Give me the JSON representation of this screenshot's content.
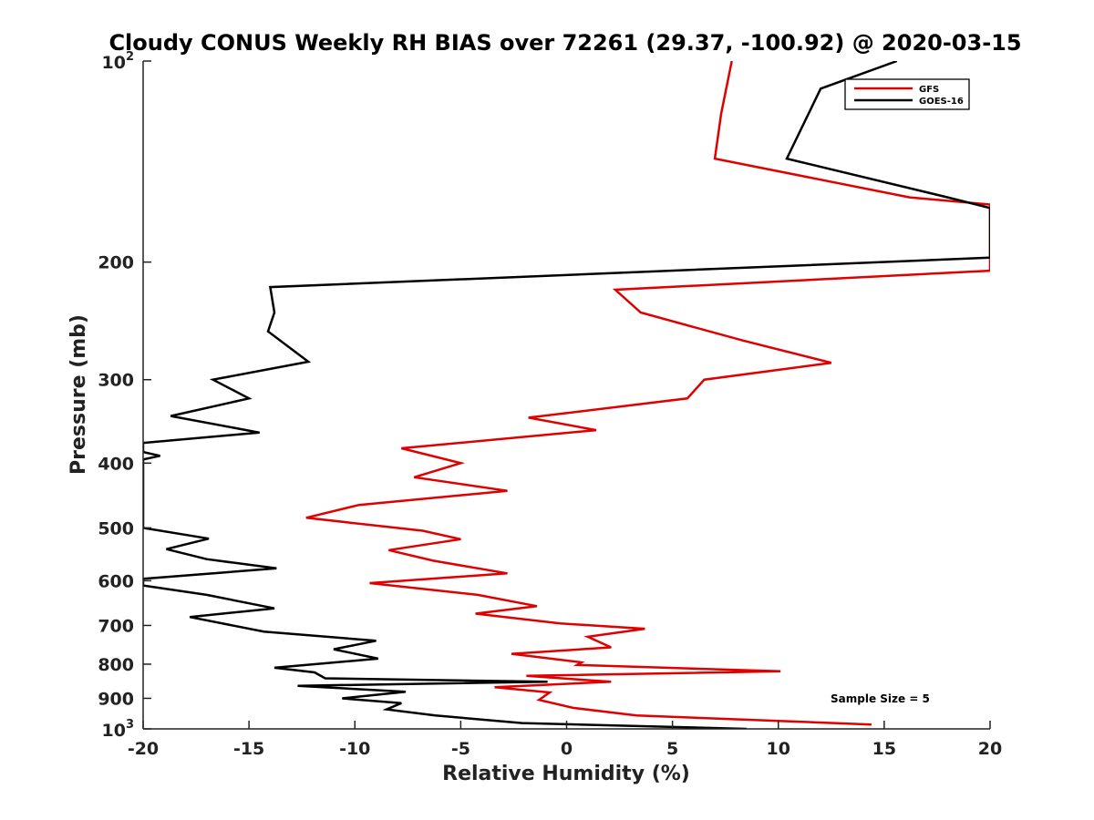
{
  "chart_data": {
    "type": "line",
    "title": "Cloudy CONUS Weekly RH BIAS over 72261 (29.37, -100.92) @ 2020-03-15",
    "xlabel": "Relative Humidity (%)",
    "ylabel": "Pressure (mb)",
    "xlim": [
      -20,
      20
    ],
    "ylim": [
      100,
      1000
    ],
    "y_scale": "log",
    "y_reversed": true,
    "grid": false,
    "legend_position": "top-right",
    "x_ticks": [
      "-20",
      "-15",
      "-10",
      "-5",
      "0",
      "5",
      "10",
      "15",
      "20"
    ],
    "x_tick_values": [
      -20,
      -15,
      -10,
      -5,
      0,
      5,
      10,
      15,
      20
    ],
    "y_ticks": [
      {
        "value": 100,
        "base": "10",
        "exp": "2"
      },
      {
        "value": 200,
        "label": "200"
      },
      {
        "value": 300,
        "label": "300"
      },
      {
        "value": 400,
        "label": "400"
      },
      {
        "value": 500,
        "label": "500"
      },
      {
        "value": 600,
        "label": "600"
      },
      {
        "value": 700,
        "label": "700"
      },
      {
        "value": 800,
        "label": "800"
      },
      {
        "value": 900,
        "label": "900"
      },
      {
        "value": 1000,
        "base": "10",
        "exp": "3"
      }
    ],
    "annotation": "Sample Size = 5",
    "series": [
      {
        "name": "GFS",
        "color": "#e00000",
        "points": [
          [
            7.8,
            100
          ],
          [
            7.3,
            120
          ],
          [
            7.0,
            140
          ],
          [
            16.2,
            160
          ],
          [
            20.0,
            164
          ],
          [
            20.0,
            206
          ],
          [
            2.3,
            220
          ],
          [
            3.5,
            238
          ],
          [
            8.3,
            262
          ],
          [
            12.5,
            283
          ],
          [
            6.5,
            300
          ],
          [
            5.7,
            320
          ],
          [
            -1.8,
            342
          ],
          [
            1.4,
            357
          ],
          [
            -7.8,
            380
          ],
          [
            -5.0,
            400
          ],
          [
            -7.2,
            420
          ],
          [
            -2.8,
            440
          ],
          [
            -9.8,
            462
          ],
          [
            -12.3,
            483
          ],
          [
            -6.8,
            505
          ],
          [
            -5.0,
            520
          ],
          [
            -8.4,
            540
          ],
          [
            -6.3,
            560
          ],
          [
            -2.8,
            585
          ],
          [
            -9.3,
            605
          ],
          [
            -4.2,
            630
          ],
          [
            -1.4,
            655
          ],
          [
            -4.3,
            672
          ],
          [
            -0.3,
            695
          ],
          [
            3.7,
            708
          ],
          [
            1.0,
            728
          ],
          [
            2.1,
            755
          ],
          [
            -2.6,
            772
          ],
          [
            0.7,
            795
          ],
          [
            0.5,
            802
          ],
          [
            10.1,
            820
          ],
          [
            -1.9,
            833
          ],
          [
            2.1,
            850
          ],
          [
            -3.4,
            866
          ],
          [
            -0.8,
            882
          ],
          [
            -1.3,
            905
          ],
          [
            0.3,
            930
          ],
          [
            3.3,
            955
          ],
          [
            14.4,
            985
          ]
        ]
      },
      {
        "name": "GOES-16",
        "color": "#000000",
        "points": [
          [
            15.6,
            100
          ],
          [
            12.0,
            110
          ],
          [
            10.4,
            140
          ],
          [
            18.0,
            160
          ],
          [
            20.0,
            166
          ],
          [
            20.0,
            197
          ],
          [
            -14.0,
            218
          ],
          [
            -13.8,
            238
          ],
          [
            -14.1,
            254
          ],
          [
            -12.2,
            282
          ],
          [
            -16.7,
            300
          ],
          [
            -15.0,
            320
          ],
          [
            -18.7,
            340
          ],
          [
            -14.5,
            360
          ],
          [
            -20.0,
            373
          ],
          [
            -20.0,
            385
          ],
          [
            -19.2,
            390
          ],
          [
            -20.0,
            395
          ],
          [
            -20.0,
            500
          ],
          [
            -16.9,
            519
          ],
          [
            -18.9,
            538
          ],
          [
            -17.0,
            557
          ],
          [
            -13.7,
            575
          ],
          [
            -20.0,
            596
          ],
          [
            -20.0,
            610
          ],
          [
            -17.0,
            630
          ],
          [
            -13.8,
            660
          ],
          [
            -17.8,
            680
          ],
          [
            -14.3,
            715
          ],
          [
            -9.0,
            738
          ],
          [
            -11.0,
            760
          ],
          [
            -8.9,
            785
          ],
          [
            -13.8,
            810
          ],
          [
            -11.9,
            823
          ],
          [
            -11.4,
            840
          ],
          [
            -0.9,
            850
          ],
          [
            -12.7,
            862
          ],
          [
            -7.6,
            880
          ],
          [
            -10.6,
            900
          ],
          [
            -7.8,
            915
          ],
          [
            -8.5,
            935
          ],
          [
            -6.2,
            955
          ],
          [
            -2.1,
            980
          ],
          [
            8.5,
            1000
          ]
        ]
      }
    ]
  }
}
